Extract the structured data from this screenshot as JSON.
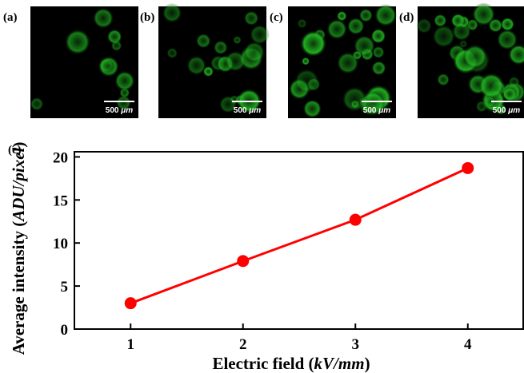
{
  "panels": [
    {
      "label": "(a)",
      "scale_bar": [
        "500 ",
        "μm"
      ]
    },
    {
      "label": "(b)",
      "scale_bar": [
        "500 ",
        "μm"
      ]
    },
    {
      "label": "(c)",
      "scale_bar": [
        "500 ",
        "μm"
      ]
    },
    {
      "label": "(d)",
      "scale_bar": [
        "500 ",
        "μm"
      ]
    }
  ],
  "chart_data": {
    "type": "line",
    "panel_label": "(e)",
    "x_label": [
      "Electric field (",
      "kV/mm",
      ")"
    ],
    "y_label": [
      "Average intensity (",
      "ADU/pixel",
      ")"
    ],
    "x": [
      1,
      2,
      3,
      4
    ],
    "series": [
      {
        "color": "#ff0000",
        "values": [
          3.0,
          7.9,
          12.7,
          18.7
        ]
      }
    ],
    "xlim": [
      0.5,
      4.5
    ],
    "ylim": [
      0,
      20.6
    ],
    "xticks": [
      1,
      2,
      3,
      4
    ],
    "yticks": [
      0,
      5,
      10,
      15,
      20
    ]
  }
}
